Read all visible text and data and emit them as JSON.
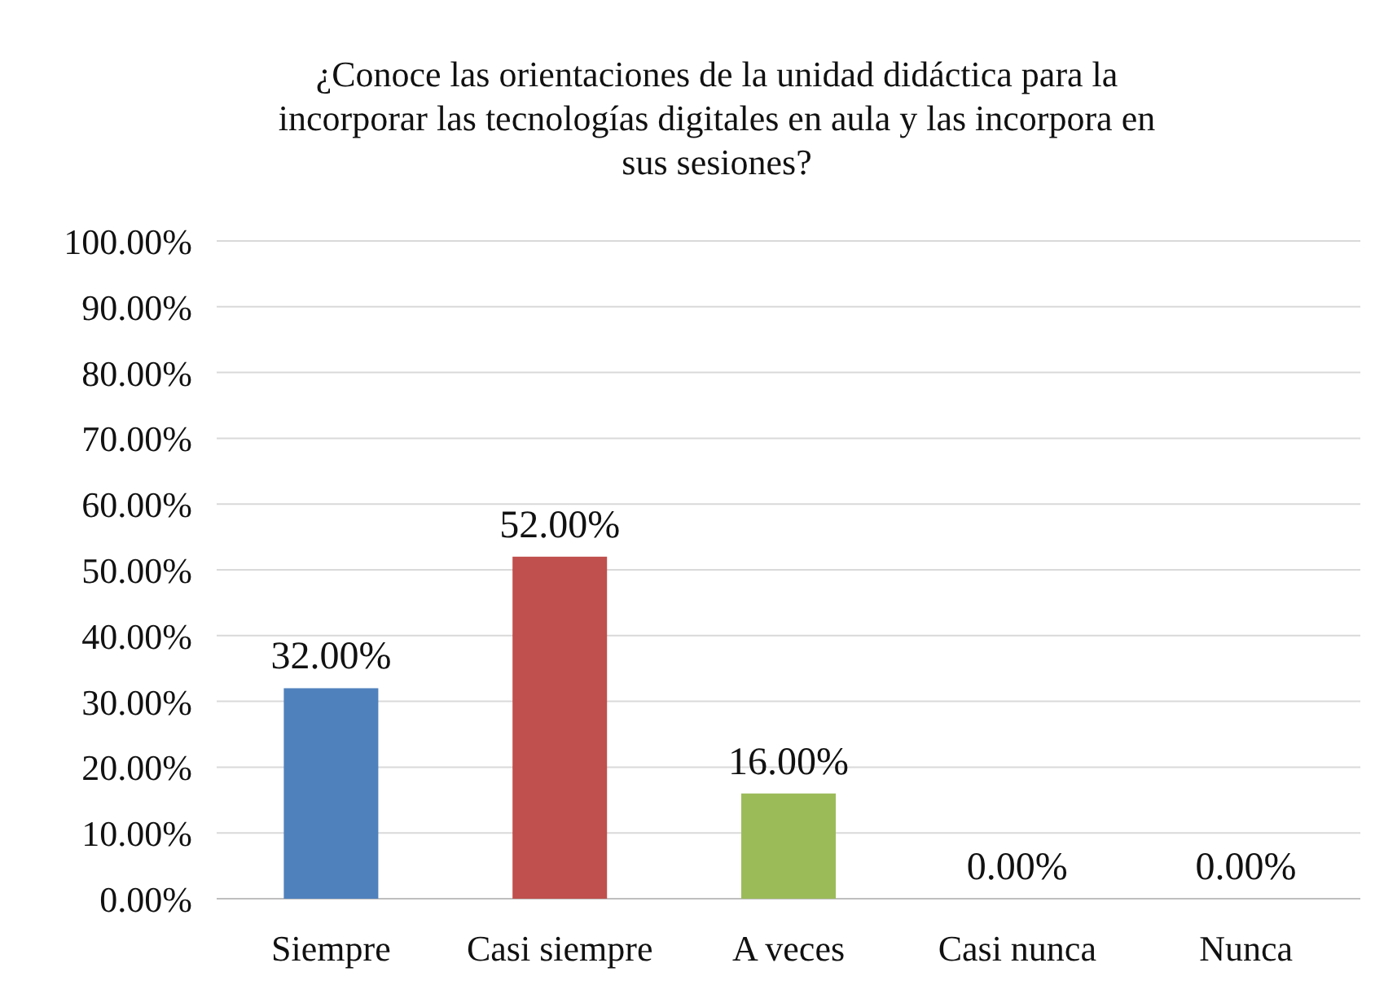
{
  "chart_data": {
    "type": "bar",
    "title": "¿Conoce las orientaciones de la unidad didáctica para la incorporar las tecnologías digitales en aula y las incorpora en sus sesiones?",
    "categories": [
      "Siempre",
      "Casi siempre",
      "A veces",
      "Casi nunca",
      "Nunca"
    ],
    "values": [
      32,
      52,
      16,
      0,
      0
    ],
    "colors": [
      "#4f81bd",
      "#c0504d",
      "#9bbb59",
      "#8064a2",
      "#4bacc6"
    ],
    "value_labels": [
      "32.00%",
      "52.00%",
      "16.00%",
      "0.00%",
      "0.00%"
    ],
    "ylim": [
      0,
      100
    ],
    "yticks": [
      {
        "value": 0,
        "label": "0.00%"
      },
      {
        "value": 10,
        "label": "10.00%"
      },
      {
        "value": 20,
        "label": "20.00%"
      },
      {
        "value": 30,
        "label": "30.00%"
      },
      {
        "value": 40,
        "label": "40.00%"
      },
      {
        "value": 50,
        "label": "50.00%"
      },
      {
        "value": 60,
        "label": "60.00%"
      },
      {
        "value": 70,
        "label": "70.00%"
      },
      {
        "value": 80,
        "label": "80.00%"
      },
      {
        "value": 90,
        "label": "90.00%"
      },
      {
        "value": 100,
        "label": "100.00%"
      }
    ],
    "grid": "y"
  }
}
